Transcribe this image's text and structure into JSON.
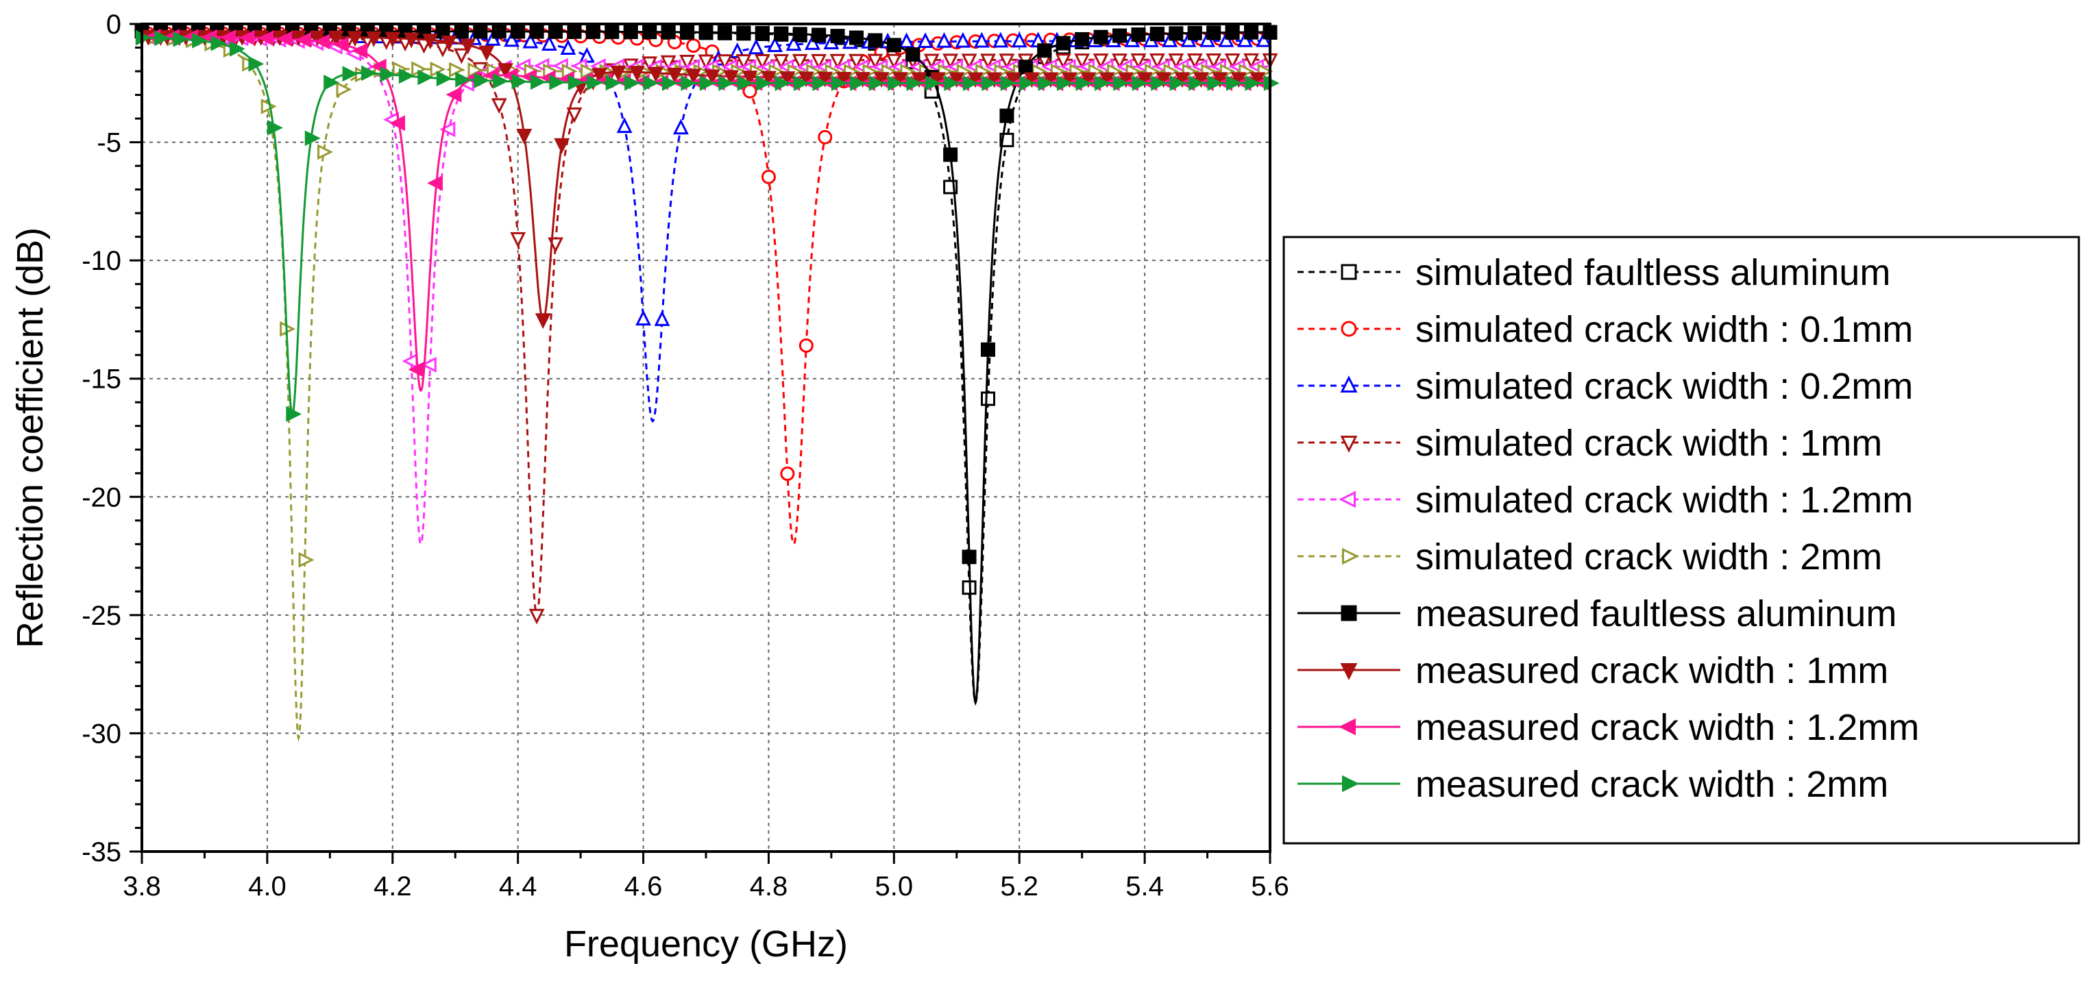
{
  "chart_data": {
    "type": "line",
    "title": "",
    "xlabel": "Frequency (GHz)",
    "ylabel": "Reflection coefficient (dB)",
    "xlim": [
      3.8,
      5.6
    ],
    "ylim": [
      -35,
      0
    ],
    "xticks": [
      "3.8",
      "4.0",
      "4.2",
      "4.4",
      "4.6",
      "4.8",
      "5.0",
      "5.2",
      "5.4",
      "5.6"
    ],
    "yticks": [
      "0",
      "-5",
      "-10",
      "-15",
      "-20",
      "-25",
      "-30",
      "-35"
    ],
    "grid": true,
    "legend_position": "right",
    "series": [
      {
        "name": "simulated faultless aluminum",
        "color": "#000000",
        "dash": true,
        "marker": "square-open",
        "f0": 5.13,
        "min": -28.7,
        "q": 0.022,
        "base": -0.3,
        "tail": 0
      },
      {
        "name": "simulated crack width : 0.1mm",
        "color": "#ff0000",
        "dash": true,
        "marker": "circle-open",
        "f0": 4.84,
        "min": -22.0,
        "q": 0.025,
        "base": -0.4,
        "tail": -0.2
      },
      {
        "name": "simulated crack width : 0.2mm",
        "color": "#0000ff",
        "dash": true,
        "marker": "triangle-up-open",
        "f0": 4.615,
        "min": -16.8,
        "q": 0.025,
        "base": -0.5,
        "tail": -0.2
      },
      {
        "name": "simulated crack width : 1mm",
        "color": "#aa1111",
        "dash": true,
        "marker": "triangle-down-open",
        "f0": 4.43,
        "min": -25.0,
        "q": 0.022,
        "base": -0.5,
        "tail": -1.0
      },
      {
        "name": "simulated crack width : 1.2mm",
        "color": "#ff33ff",
        "dash": true,
        "marker": "triangle-left-open",
        "f0": 4.245,
        "min": -22.0,
        "q": 0.02,
        "base": -0.5,
        "tail": -1.3
      },
      {
        "name": "simulated crack width : 2mm",
        "color": "#999933",
        "dash": true,
        "marker": "triangle-right-open",
        "f0": 4.05,
        "min": -30.2,
        "q": 0.017,
        "base": -0.4,
        "tail": -1.6
      },
      {
        "name": "measured faultless aluminum",
        "color": "#000000",
        "dash": false,
        "marker": "square",
        "f0": 5.13,
        "min": -28.7,
        "q": 0.019,
        "base": -0.3,
        "tail": 0
      },
      {
        "name": "measured crack width : 1mm",
        "color": "#aa1111",
        "dash": false,
        "marker": "triangle-down",
        "f0": 4.44,
        "min": -12.5,
        "q": 0.022,
        "base": -0.5,
        "tail": -1.8
      },
      {
        "name": "measured crack width : 1.2mm",
        "color": "#ff1493",
        "dash": false,
        "marker": "triangle-left",
        "f0": 4.245,
        "min": -15.5,
        "q": 0.02,
        "base": -0.5,
        "tail": -2.0
      },
      {
        "name": "measured crack width : 2mm",
        "color": "#119933",
        "dash": false,
        "marker": "triangle-right",
        "f0": 4.04,
        "min": -16.5,
        "q": 0.017,
        "base": -0.5,
        "tail": -2.0
      }
    ]
  }
}
